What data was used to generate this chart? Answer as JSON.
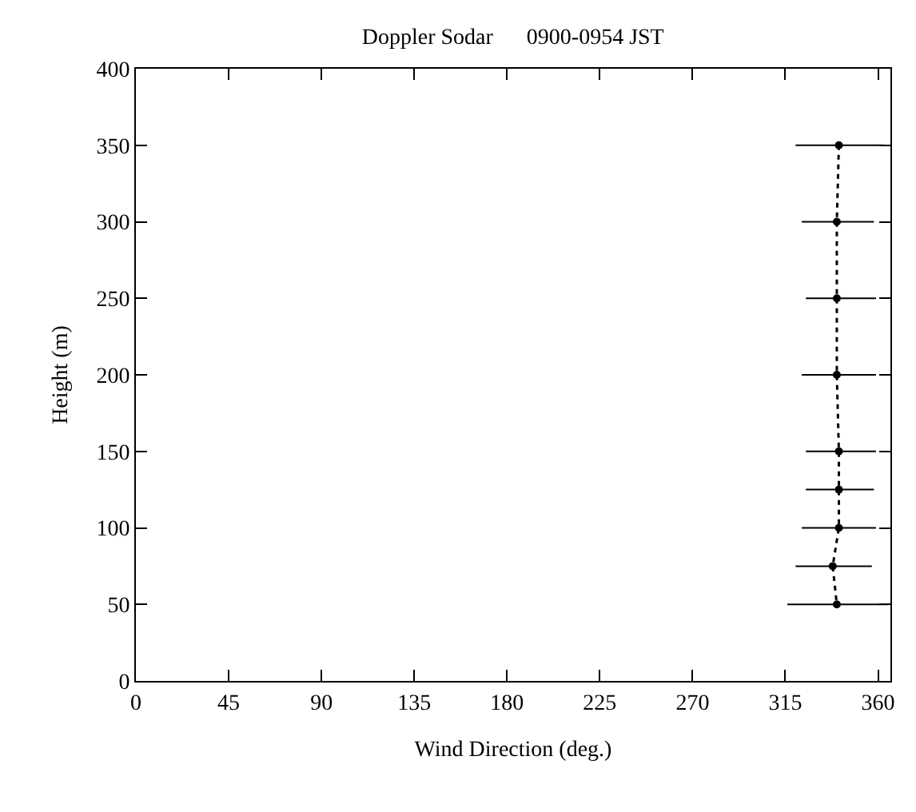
{
  "chart_data": {
    "type": "line",
    "title": "Doppler Sodar      0900-0954 JST",
    "xlabel": "Wind Direction (deg.)",
    "ylabel": "Height (m)",
    "x": [
      341,
      340,
      340,
      340,
      341,
      341,
      341,
      338,
      340
    ],
    "values": [
      350,
      300,
      250,
      200,
      150,
      125,
      100,
      75,
      50
    ],
    "xerrors": [
      [
        320,
        363
      ],
      [
        323,
        358
      ],
      [
        325,
        359
      ],
      [
        323,
        359
      ],
      [
        325,
        359
      ],
      [
        325,
        358
      ],
      [
        323,
        359
      ],
      [
        320,
        357
      ],
      [
        316,
        365
      ]
    ],
    "color": "#000000",
    "marker": "circle",
    "line_style": "dotted",
    "grid": false,
    "legend": false,
    "xlim": [
      0,
      366
    ],
    "xticks": [
      0,
      45,
      90,
      135,
      180,
      225,
      270,
      315,
      360
    ],
    "ylim": [
      0,
      400
    ],
    "yticks": [
      0,
      50,
      100,
      150,
      200,
      250,
      300,
      350,
      400
    ]
  }
}
